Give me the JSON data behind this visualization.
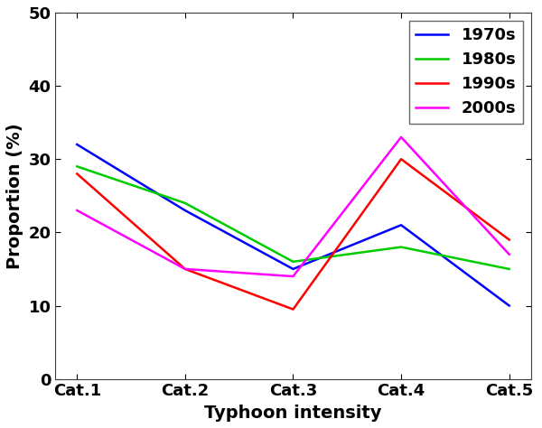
{
  "categories": [
    "Cat.1",
    "Cat.2",
    "Cat.3",
    "Cat.4",
    "Cat.5"
  ],
  "series": {
    "1970s": {
      "values": [
        32,
        23,
        15,
        21,
        10
      ],
      "color": "#0000FF"
    },
    "1980s": {
      "values": [
        29,
        24,
        16,
        18,
        15
      ],
      "color": "#00CC00"
    },
    "1990s": {
      "values": [
        28,
        15,
        9.5,
        30,
        19
      ],
      "color": "#FF0000"
    },
    "2000s": {
      "values": [
        23,
        15,
        14,
        33,
        17
      ],
      "color": "#FF00FF"
    }
  },
  "xlabel": "Typhoon intensity",
  "ylabel": "Proportion (%)",
  "ylim": [
    0,
    50
  ],
  "yticks": [
    0,
    10,
    20,
    30,
    40,
    50
  ],
  "legend_loc": "upper right",
  "legend_order": [
    "1970s",
    "1980s",
    "1990s",
    "2000s"
  ],
  "linewidth": 1.8,
  "figsize": [
    6.0,
    4.74
  ],
  "dpi": 100
}
